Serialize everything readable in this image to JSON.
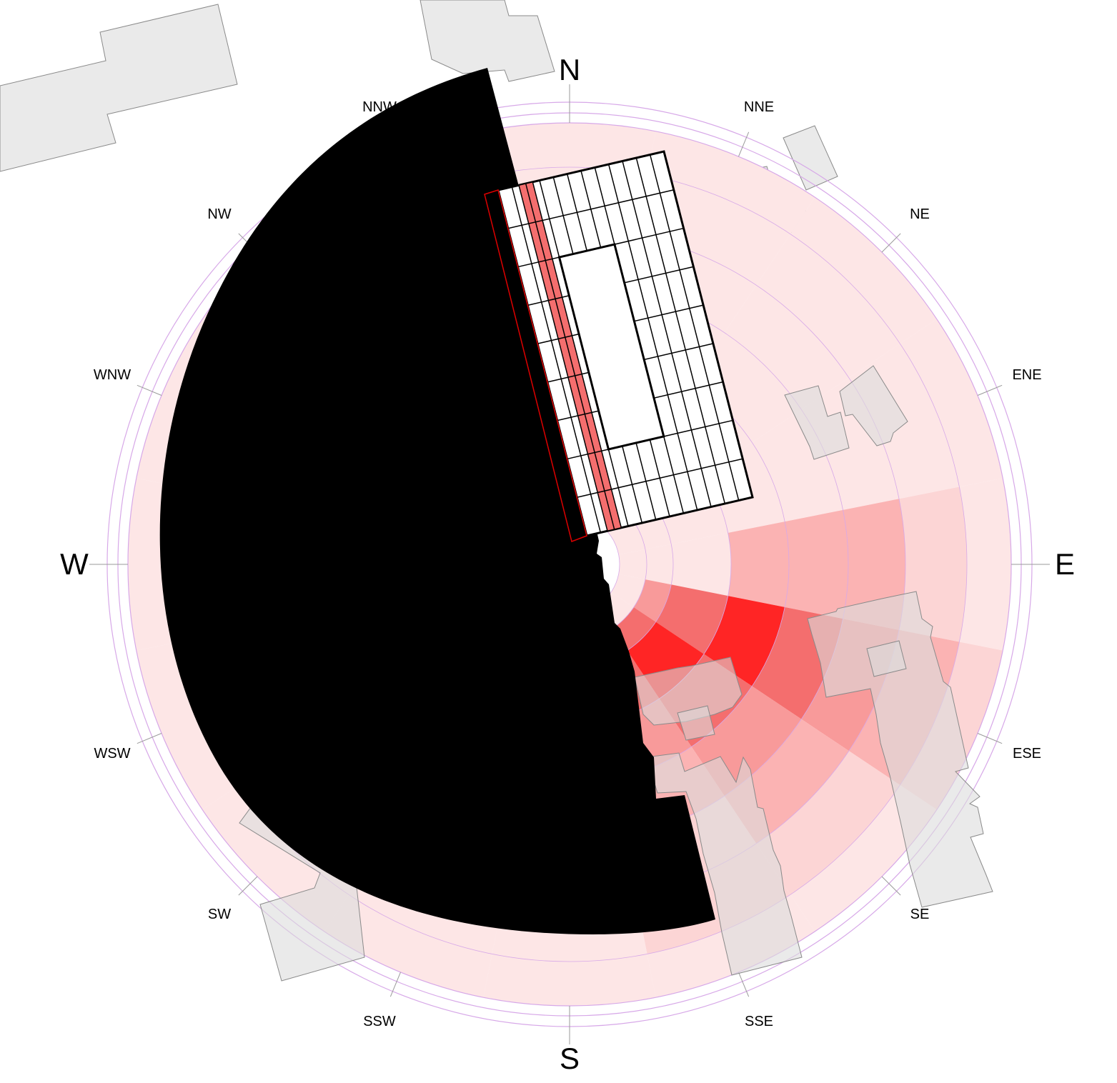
{
  "diagram": {
    "type": "wind-rose-site-overlay",
    "directions": {
      "major": [
        "N",
        "E",
        "S",
        "W"
      ],
      "minor": [
        "NNE",
        "NE",
        "ENE",
        "ESE",
        "SE",
        "SSE",
        "SSW",
        "SW",
        "WSW",
        "WNW",
        "NW",
        "NNW"
      ]
    },
    "colors": {
      "lightest": "#fde6e6",
      "light": "#fcd5d5",
      "medium": "#fbb3b3",
      "strong": "#f89a9a",
      "stronger": "#f46e6e",
      "strongest": "#ff2525",
      "ring": "#d7a8e8",
      "mask": "#000000",
      "building": "#dcdcdc"
    },
    "rings": 8,
    "sectors": 16
  }
}
